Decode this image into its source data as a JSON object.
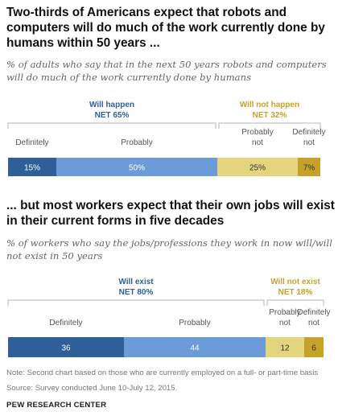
{
  "colors": {
    "definitely_positive": "#2e5f99",
    "probably_positive": "#6b9bd8",
    "probably_negative": "#e5d47e",
    "definitely_negative": "#c6a22a",
    "net_positive_label": "#2e5f99",
    "net_negative_label": "#c6a22a"
  },
  "chart_data": [
    {
      "type": "bar",
      "orientation": "horizontal-stacked",
      "title": "Two-thirds of Americans expect that robots and computers will do much of the work currently done by humans within 50 years ...",
      "subtitle": "% of adults who say that in the next 50 years robots and computers will do much of the work currently done by humans",
      "groups": [
        {
          "label": "Will happen",
          "net": "NET 65%"
        },
        {
          "label": "Will not happen",
          "net": "NET 32%"
        }
      ],
      "series": [
        {
          "name": "Definitely",
          "value": 15,
          "display": "15%",
          "group": 0
        },
        {
          "name": "Probably",
          "value": 50,
          "display": "50%",
          "group": 0
        },
        {
          "name": "Probably not",
          "value": 25,
          "display": "25%",
          "group": 1
        },
        {
          "name": "Definitely not",
          "value": 7,
          "display": "7%",
          "group": 1
        }
      ]
    },
    {
      "type": "bar",
      "orientation": "horizontal-stacked",
      "title": "... but most workers expect that their own jobs will exist in their current forms in five decades",
      "subtitle": "% of workers who say the jobs/professions they work in now will/will not exist in 50 years",
      "groups": [
        {
          "label": "Will exist",
          "net": "NET 80%"
        },
        {
          "label": "Will not exist",
          "net": "NET 18%"
        }
      ],
      "series": [
        {
          "name": "Definitely",
          "value": 36,
          "display": "36",
          "group": 0
        },
        {
          "name": "Probably",
          "value": 44,
          "display": "44",
          "group": 0
        },
        {
          "name": "Probably not",
          "value": 12,
          "display": "12",
          "group": 1
        },
        {
          "name": "Definitely not",
          "value": 6,
          "display": "6",
          "group": 1
        }
      ]
    }
  ],
  "footer": {
    "note": "Note: Second chart based on those who are currently employed on a full- or part-time basis",
    "source": "Source: Survey conducted June 10-July 12, 2015.",
    "brand": "PEW RESEARCH CENTER"
  }
}
